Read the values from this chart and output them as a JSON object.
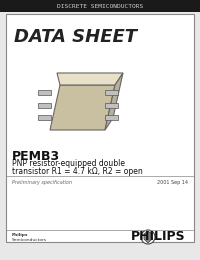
{
  "bg_color": "#f0f0f0",
  "header_bar_color": "#1a1a1a",
  "header_text": "DISCRETE SEMICONDUCTORS",
  "header_text_color": "#cccccc",
  "card_bg": "#ffffff",
  "card_border_color": "#888888",
  "data_sheet_text": "DATA SHEET",
  "data_sheet_color": "#222222",
  "part_name": "PEMB3",
  "description_line1": "PNP resistor-equipped double",
  "description_line2": "transistor R1 = 4.7 kΩ, R2 = open",
  "prelim_text": "Preliminary specification",
  "date_text": "2001 Sep 14",
  "philips_text": "PHILIPS",
  "philips_semi_line1": "Philips",
  "philips_semi_line2": "Semiconductors",
  "footer_bg": "#ffffff",
  "page_bg": "#e8e8e8"
}
